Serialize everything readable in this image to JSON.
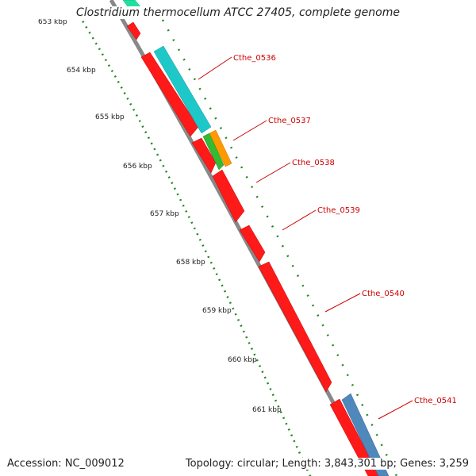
{
  "title": "Clostridium thermocellum ATCC 27405, complete genome",
  "footer": {
    "accession": "Accession: NC_009012",
    "topology": "Topology: circular; Length: 3,843,301 bp; Genes: 3,259"
  },
  "ticks": [
    "653 kbp",
    "654 kbp",
    "655 kbp",
    "656 kbp",
    "657 kbp",
    "658 kbp",
    "659 kbp",
    "660 kbp",
    "661 kbp"
  ],
  "gene_labels": [
    "Cthe_0536",
    "Cthe_0537",
    "Cthe_0538",
    "Cthe_0539",
    "Cthe_0540",
    "Cthe_0541"
  ],
  "colors": {
    "cds": "#ff0000",
    "teal": "#1fc8c8",
    "orange": "#ff9900",
    "green": "#33bb33",
    "blue": "#4f88bb",
    "backbone": "#888888",
    "tick_dots": "#228822",
    "label": "#cc0000"
  }
}
